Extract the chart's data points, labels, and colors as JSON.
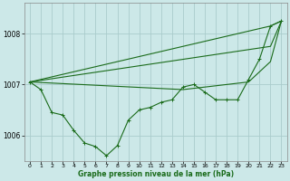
{
  "bg_color": "#cce8e8",
  "grid_color": "#aacccc",
  "line_color": "#1a6b1a",
  "xlabel": "Graphe pression niveau de la mer (hPa)",
  "ylabel_ticks": [
    1006,
    1007,
    1008
  ],
  "xlim": [
    -0.5,
    23.5
  ],
  "ylim": [
    1005.5,
    1008.6
  ],
  "xticks": [
    0,
    1,
    2,
    3,
    4,
    5,
    6,
    7,
    8,
    9,
    10,
    11,
    12,
    13,
    14,
    15,
    16,
    17,
    18,
    19,
    20,
    21,
    22,
    23
  ],
  "series_main": [
    1007.05,
    1006.9,
    1006.45,
    1006.4,
    1006.1,
    1005.85,
    1005.78,
    1005.6,
    1005.8,
    1006.3,
    1006.5,
    1006.55,
    1006.65,
    1006.7,
    1006.95,
    1007.0,
    1006.85,
    1006.7,
    1006.7,
    1006.7,
    1007.1,
    1007.5,
    1008.15,
    1008.25
  ],
  "smooth_lines": [
    [
      [
        0,
        1007.05
      ],
      [
        22,
        1008.15
      ],
      [
        23,
        1008.25
      ]
    ],
    [
      [
        0,
        1007.05
      ],
      [
        22,
        1007.75
      ],
      [
        23,
        1008.25
      ]
    ],
    [
      [
        0,
        1007.05
      ],
      [
        14,
        1006.9
      ],
      [
        16,
        1006.95
      ],
      [
        20,
        1007.05
      ],
      [
        22,
        1007.45
      ],
      [
        23,
        1008.25
      ]
    ]
  ]
}
